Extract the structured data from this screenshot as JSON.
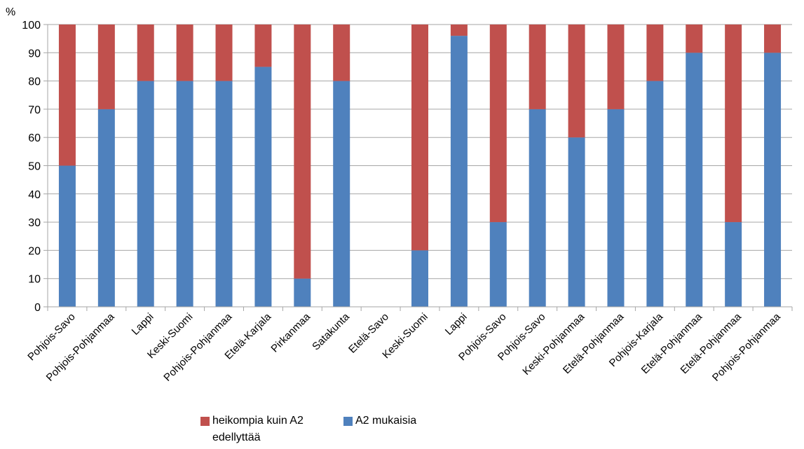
{
  "chart_data": {
    "type": "bar",
    "stacked": true,
    "ylabel": "%",
    "ylim": [
      0,
      100
    ],
    "yticks": [
      "0",
      "10",
      "20",
      "30",
      "40",
      "50",
      "60",
      "70",
      "80",
      "90",
      "100"
    ],
    "categories": [
      "Pohjois-Savo",
      "Pohjois-Pohjanmaa",
      "Lappi",
      "Keski-Suomi",
      "Pohjois-Pohjanmaa",
      "Etelä-Karjala",
      "Pirkanmaa",
      "Satakunta",
      "Etelä-Savo",
      "Keski-Suomi",
      "Lappi",
      "Pohjois-Savo",
      "Pohjois-Savo",
      "Keski-Pohjanmaa",
      "Etelä-Pohjanmaa",
      "Pohjois-Karjala",
      "Etelä-Pohjanmaa",
      "Etelä-Pohjanmaa",
      "Pohjois-Pohjanmaa"
    ],
    "series": [
      {
        "name": "A2 mukaisia",
        "color": "#4f81bd",
        "values": [
          50,
          70,
          80,
          80,
          80,
          85,
          10,
          80,
          0,
          20,
          96,
          30,
          70,
          60,
          70,
          80,
          90,
          30,
          90
        ]
      },
      {
        "name": "heikompia kuin A2 edellyttää",
        "color": "#c0504d",
        "values": [
          50,
          30,
          20,
          20,
          20,
          15,
          90,
          20,
          0,
          80,
          4,
          70,
          30,
          40,
          30,
          20,
          10,
          70,
          10
        ]
      }
    ],
    "grid": true,
    "legend_position": "bottom"
  },
  "legend": {
    "items": [
      {
        "label": "heikompia kuin A2 edellyttää",
        "color": "#c0504d"
      },
      {
        "label": "A2 mukaisia",
        "color": "#4f81bd"
      }
    ]
  }
}
